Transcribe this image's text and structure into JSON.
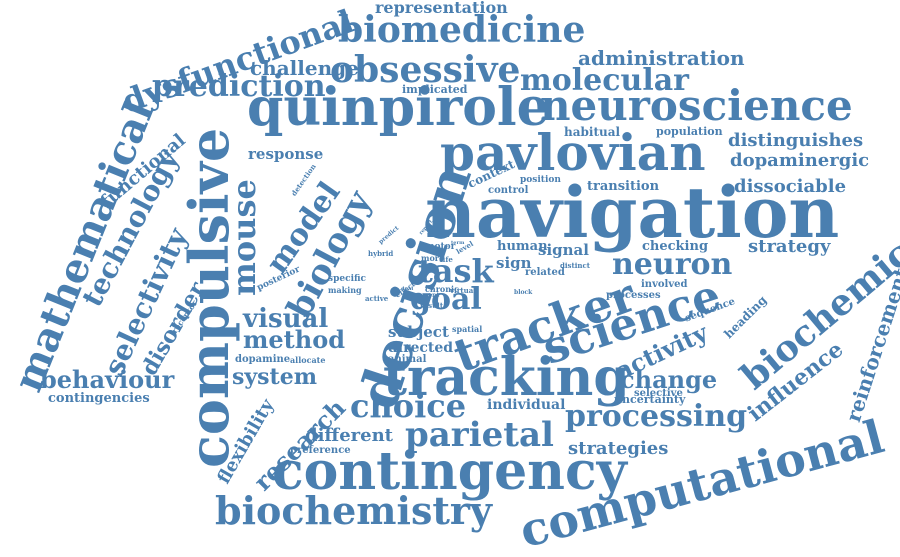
{
  "colors": {
    "word": "#4a7fb0",
    "background": "#ffffff"
  },
  "words": [
    "navigation",
    "compulsive",
    "decision",
    "tracking",
    "contingency",
    "computational",
    "quinpirole",
    "pavlovian",
    "tracker",
    "science",
    "neuroscience",
    "biomedicine",
    "obsessive",
    "mathematical",
    "dysfunctional",
    "biochemistry",
    "biochemical",
    "biology",
    "prediction",
    "molecular",
    "parietal",
    "processing",
    "mouse",
    "choice",
    "neuron",
    "goal",
    "task",
    "model",
    "technology",
    "selectivity",
    "behaviour",
    "visual",
    "administration",
    "representation",
    "challenge",
    "functional",
    "disorder",
    "system",
    "method",
    "research",
    "activity",
    "change",
    "influence",
    "reinforcement",
    "strategy",
    "distinguishes",
    "dopaminergic",
    "dissociable",
    "flexibility",
    "different",
    "strategies",
    "response",
    "individual",
    "contingencies",
    "subject",
    "directed",
    "signal",
    "sign",
    "human",
    "transition",
    "checking",
    "habitual",
    "population",
    "implicated",
    "context",
    "control",
    "position",
    "uncertainty",
    "heading",
    "sequence",
    "selective",
    "involved",
    "processes",
    "related",
    "distinct",
    "dopamine",
    "allocate",
    "animal",
    "preference",
    "posterior",
    "specific",
    "making",
    "hybrid",
    "motor",
    "more",
    "life",
    "level",
    "chronic",
    "event",
    "virtual",
    "spatial",
    "result",
    "effect",
    "active",
    "block",
    "detection",
    "receptor",
    "predict",
    "report",
    "term",
    "dual"
  ]
}
